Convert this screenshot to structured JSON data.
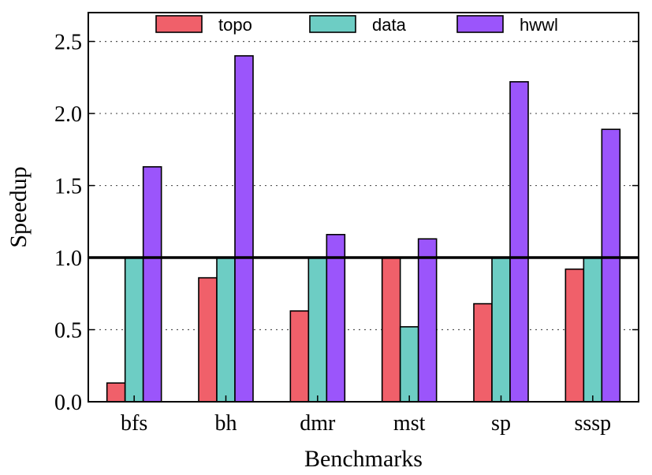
{
  "chart_data": {
    "type": "bar",
    "xlabel": "Benchmarks",
    "ylabel": "Speedup",
    "categories": [
      "bfs",
      "bh",
      "dmr",
      "mst",
      "sp",
      "sssp"
    ],
    "series": [
      {
        "name": "topo",
        "color": "#f0606a",
        "values": [
          0.13,
          0.86,
          0.63,
          1.0,
          0.68,
          0.92
        ]
      },
      {
        "name": "data",
        "color": "#6dcdc4",
        "values": [
          1.0,
          1.0,
          1.0,
          0.52,
          1.0,
          1.0
        ]
      },
      {
        "name": "hwwl",
        "color": "#9b55fb",
        "values": [
          1.63,
          2.4,
          1.16,
          1.13,
          2.22,
          1.89
        ]
      }
    ],
    "ylim": [
      0,
      2.7
    ],
    "yticks": [
      0.0,
      0.5,
      1.0,
      1.5,
      2.0,
      2.5
    ],
    "ytick_labels": [
      "0.0",
      "0.5",
      "1.0",
      "1.5",
      "2.0",
      "2.5"
    ],
    "reference_line": 1.0,
    "grid": "horizontal dotted",
    "legend_position": "top"
  }
}
